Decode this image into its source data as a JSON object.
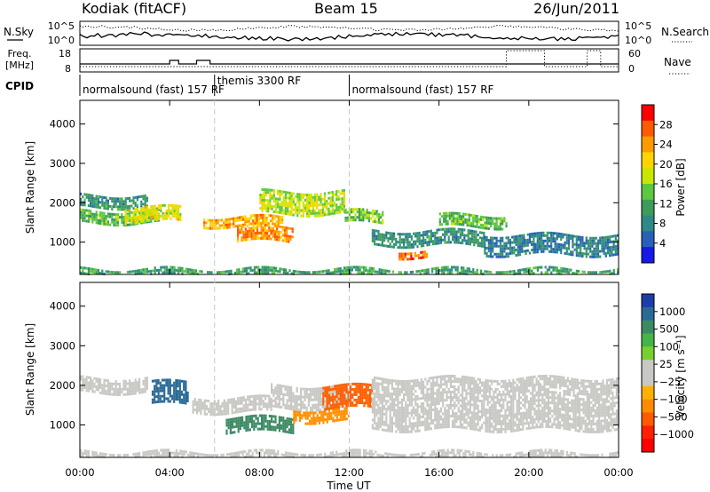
{
  "header": {
    "station": "Kodiak (fitACF)",
    "beam": "Beam 15",
    "date": "26/Jun/2011"
  },
  "noise_panel": {
    "left_label": "N.Sky",
    "right_label": "N.Search",
    "left_ticks": [
      "10^5",
      "10^0"
    ],
    "right_ticks": [
      "10^5",
      "10^0"
    ]
  },
  "freq_panel": {
    "label_line1": "Freq.",
    "label_line2": "[MHz]",
    "right_label": "Nave",
    "left_ticks": [
      "18",
      "8"
    ],
    "right_ticks": [
      "60",
      "0"
    ]
  },
  "cpid": {
    "label": "CPID",
    "segments": [
      {
        "start_hour": 0,
        "end_hour": 6,
        "text": "normalsound (fast) 157 RF"
      },
      {
        "start_hour": 6,
        "end_hour": 12,
        "text": "themis 3300 RF"
      },
      {
        "start_hour": 12,
        "end_hour": 24,
        "text": "normalsound (fast) 157 RF"
      }
    ]
  },
  "power_panel": {
    "ylabel": "Slant Range [km]",
    "colorbar_label": "Power [dB]",
    "colorbar_ticks": [
      "28",
      "24",
      "20",
      "16",
      "12",
      "8",
      "4"
    ],
    "colorbar_colors": [
      "#ff0000",
      "#ff5a00",
      "#ff9a00",
      "#ffd400",
      "#c8e600",
      "#5cc840",
      "#3c9c5a",
      "#2e8a86",
      "#2860b8",
      "#1818e8"
    ]
  },
  "velocity_panel": {
    "ylabel": "Slant Range [km]",
    "colorbar_label": "Velocity [m s⁻¹]",
    "colorbar_ticks": [
      "1000",
      "500",
      "100",
      "25",
      "−25",
      "−100",
      "−500",
      "−1000"
    ],
    "colorbar_colors": [
      "#1b3ea8",
      "#2a6a96",
      "#3c8a64",
      "#46b446",
      "#78d030",
      "#c8c8c4",
      "#c8c8c4",
      "#ffb000",
      "#ff8c00",
      "#ff5a00",
      "#ff2000",
      "#ff0000"
    ]
  },
  "x_axis": {
    "label": "Time UT",
    "ticks": [
      "00:00",
      "04:00",
      "08:00",
      "12:00",
      "16:00",
      "20:00",
      "00:00"
    ]
  },
  "chart_data": [
    {
      "type": "heatmap",
      "title": "Power",
      "xlabel": "Time UT",
      "ylabel": "Slant Range [km]",
      "xlim": [
        0,
        24
      ],
      "ylim": [
        180,
        4600
      ],
      "y_ticks": [
        1000,
        2000,
        3000,
        4000
      ],
      "colorbar": {
        "label": "Power [dB]",
        "range": [
          0,
          30
        ]
      },
      "bands": [
        {
          "t0": 0.0,
          "t1": 3.0,
          "r0": 1900,
          "r1": 2200,
          "level": 8
        },
        {
          "t0": 0.0,
          "t1": 3.5,
          "r0": 1500,
          "r1": 1800,
          "level": 12
        },
        {
          "t0": 2.0,
          "t1": 4.5,
          "r0": 1550,
          "r1": 1900,
          "level": 18
        },
        {
          "t0": 5.5,
          "t1": 9.0,
          "r0": 1400,
          "r1": 1650,
          "level": 22
        },
        {
          "t0": 7.0,
          "t1": 9.5,
          "r0": 1000,
          "r1": 1400,
          "level": 24
        },
        {
          "t0": 8.0,
          "t1": 11.8,
          "r0": 1700,
          "r1": 2300,
          "level": 16
        },
        {
          "t0": 11.8,
          "t1": 13.5,
          "r0": 1500,
          "r1": 1800,
          "level": 14
        },
        {
          "t0": 13.0,
          "t1": 18.0,
          "r0": 900,
          "r1": 1300,
          "level": 8
        },
        {
          "t0": 14.2,
          "t1": 15.5,
          "r0": 600,
          "r1": 800,
          "level": 26
        },
        {
          "t0": 16.0,
          "t1": 19.0,
          "r0": 1400,
          "r1": 1700,
          "level": 12
        },
        {
          "t0": 18.0,
          "t1": 24.0,
          "r0": 700,
          "r1": 1200,
          "level": 6
        },
        {
          "t0": 0.0,
          "t1": 24.0,
          "r0": 180,
          "r1": 330,
          "level": 10
        }
      ]
    },
    {
      "type": "heatmap",
      "title": "Velocity",
      "xlabel": "Time UT",
      "ylabel": "Slant Range [km]",
      "xlim": [
        0,
        24
      ],
      "ylim": [
        180,
        4600
      ],
      "y_ticks": [
        1000,
        2000,
        3000,
        4000
      ],
      "colorbar": {
        "label": "Velocity [m s⁻¹]",
        "range": [
          -1000,
          1000
        ]
      },
      "bands": [
        {
          "t0": 0.0,
          "t1": 3.0,
          "r0": 1800,
          "r1": 2200,
          "velocity": 0
        },
        {
          "t0": 3.2,
          "t1": 4.8,
          "r0": 1500,
          "r1": 2100,
          "velocity": 300
        },
        {
          "t0": 5.0,
          "t1": 8.5,
          "r0": 1300,
          "r1": 1700,
          "velocity": 0
        },
        {
          "t0": 6.5,
          "t1": 9.5,
          "r0": 800,
          "r1": 1200,
          "velocity": 80
        },
        {
          "t0": 8.5,
          "t1": 12.0,
          "r0": 1400,
          "r1": 2000,
          "velocity": 0
        },
        {
          "t0": 9.5,
          "t1": 12.0,
          "r0": 1100,
          "r1": 1400,
          "velocity": -150
        },
        {
          "t0": 10.8,
          "t1": 13.0,
          "r0": 1400,
          "r1": 2000,
          "velocity": -400
        },
        {
          "t0": 13.0,
          "t1": 24.0,
          "r0": 900,
          "r1": 2200,
          "velocity": 0
        },
        {
          "t0": 0.0,
          "t1": 24.0,
          "r0": 180,
          "r1": 330,
          "velocity": 0
        }
      ]
    }
  ]
}
